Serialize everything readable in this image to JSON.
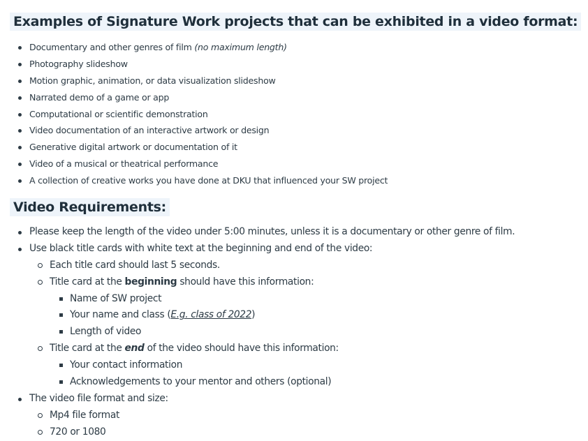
{
  "section1": {
    "heading": "Examples of Signature Work projects that can be exhibited in a video format:",
    "items": [
      {
        "text": "Documentary and other genres of film ",
        "note": "(no maximum length)"
      },
      {
        "text": "Photography slideshow"
      },
      {
        "text": "Motion graphic, animation, or data visualization slideshow"
      },
      {
        "text": "Narrated demo of a game or app"
      },
      {
        "text": "Computational or scientific demonstration"
      },
      {
        "text": "Video documentation of an interactive artwork or design"
      },
      {
        "text": "Generative digital artwork or documentation of it"
      },
      {
        "text": "Video of a musical or theatrical performance"
      },
      {
        "text": "A collection of creative works you have done at DKU that influenced your SW project"
      }
    ]
  },
  "section2": {
    "heading": "Video Requirements:",
    "length": "Please keep the length of the video under 5:00 minutes, unless it is a documentary or other genre of film.",
    "title_cards": "Use black title cards with white text at the beginning and end of the video:",
    "duration": "Each title card should last 5 seconds.",
    "beginning_pre": "Title card at the ",
    "beginning_bold": "beginning",
    "beginning_post": " should have this information:",
    "begin_items": {
      "project": "Name of SW project",
      "name_class_pre": "Your name and class ",
      "paren_open": "(",
      "link": "E.g. class of 2022",
      "paren_close": ")",
      "length": "Length of video"
    },
    "end_pre": "Title card at the ",
    "end_bold": "end",
    "end_post": " of the video should have this information:",
    "end_items": [
      "Your contact information",
      "Acknowledgements to your mentor and others (optional)"
    ],
    "format_intro": "The video file format and size:",
    "formats": [
      "Mp4 file format",
      "720 or 1080"
    ]
  }
}
